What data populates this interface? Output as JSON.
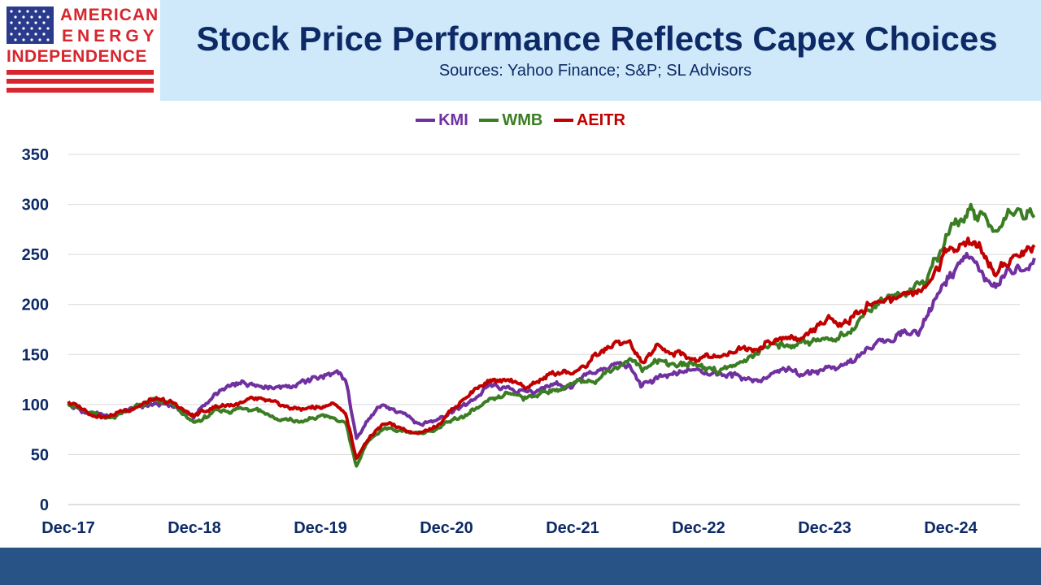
{
  "header": {
    "logo_line1": "AMERICAN",
    "logo_line2": "ENERGY",
    "logo_line3": "INDEPENDENCE",
    "title": "Stock Price Performance Reflects Capex Choices",
    "subtitle": "Sources: Yahoo Finance; S&P; SL Advisors"
  },
  "colors": {
    "header_bg": "#cfe9fb",
    "title": "#0d2a66",
    "footer": "#275387",
    "logo_red": "#d7262e",
    "logo_blue": "#2a3a8c"
  },
  "chart_data": {
    "type": "line",
    "title": "",
    "xlabel": "",
    "ylabel": "",
    "ylim": [
      0,
      350
    ],
    "yticks": [
      0,
      50,
      100,
      150,
      200,
      250,
      300,
      350
    ],
    "xticks": [
      "Dec-17",
      "Dec-18",
      "Dec-19",
      "Dec-20",
      "Dec-21",
      "Dec-22",
      "Dec-23",
      "Dec-24"
    ],
    "xlim": [
      "2017-12-01",
      "2025-07-31"
    ],
    "grid": true,
    "legend_position": "top",
    "series": [
      {
        "name": "KMI",
        "color": "#7030a0",
        "points": [
          [
            "2017-12-01",
            100
          ],
          [
            "2018-02-01",
            90
          ],
          [
            "2018-04-01",
            88
          ],
          [
            "2018-06-01",
            95
          ],
          [
            "2018-08-01",
            100
          ],
          [
            "2018-10-01",
            99
          ],
          [
            "2018-12-01",
            88
          ],
          [
            "2019-02-01",
            110
          ],
          [
            "2019-04-01",
            118
          ],
          [
            "2019-06-01",
            122
          ],
          [
            "2019-08-01",
            120
          ],
          [
            "2019-10-01",
            121
          ],
          [
            "2019-12-01",
            128
          ],
          [
            "2020-01-15",
            130
          ],
          [
            "2020-02-15",
            120
          ],
          [
            "2020-03-15",
            65
          ],
          [
            "2020-04-15",
            85
          ],
          [
            "2020-06-01",
            98
          ],
          [
            "2020-07-15",
            92
          ],
          [
            "2020-09-15",
            82
          ],
          [
            "2020-11-01",
            85
          ],
          [
            "2020-12-15",
            95
          ],
          [
            "2021-02-01",
            100
          ],
          [
            "2021-04-01",
            118
          ],
          [
            "2021-06-01",
            115
          ],
          [
            "2021-08-01",
            112
          ],
          [
            "2021-10-01",
            120
          ],
          [
            "2021-12-01",
            118
          ],
          [
            "2022-02-01",
            130
          ],
          [
            "2022-04-01",
            140
          ],
          [
            "2022-05-15",
            137
          ],
          [
            "2022-06-20",
            118
          ],
          [
            "2022-08-01",
            125
          ],
          [
            "2022-10-01",
            128
          ],
          [
            "2022-12-01",
            137
          ],
          [
            "2023-02-01",
            132
          ],
          [
            "2023-04-01",
            128
          ],
          [
            "2023-06-01",
            126
          ],
          [
            "2023-08-01",
            132
          ],
          [
            "2023-10-01",
            131
          ],
          [
            "2023-12-01",
            137
          ],
          [
            "2024-02-01",
            138
          ],
          [
            "2024-04-01",
            152
          ],
          [
            "2024-06-01",
            165
          ],
          [
            "2024-07-15",
            170
          ],
          [
            "2024-09-01",
            175
          ],
          [
            "2024-10-01",
            195
          ],
          [
            "2024-11-15",
            225
          ],
          [
            "2024-12-20",
            240
          ],
          [
            "2025-01-20",
            250
          ],
          [
            "2025-03-01",
            228
          ],
          [
            "2025-04-08",
            215
          ],
          [
            "2025-05-15",
            230
          ],
          [
            "2025-07-31",
            237
          ]
        ]
      },
      {
        "name": "WMB",
        "color": "#3b7d23",
        "points": [
          [
            "2017-12-01",
            103
          ],
          [
            "2018-02-01",
            90
          ],
          [
            "2018-04-01",
            87
          ],
          [
            "2018-06-01",
            95
          ],
          [
            "2018-08-01",
            103
          ],
          [
            "2018-10-01",
            98
          ],
          [
            "2018-12-01",
            80
          ],
          [
            "2019-02-01",
            92
          ],
          [
            "2019-04-01",
            95
          ],
          [
            "2019-06-01",
            98
          ],
          [
            "2019-08-01",
            85
          ],
          [
            "2019-10-01",
            82
          ],
          [
            "2019-12-01",
            87
          ],
          [
            "2020-01-15",
            87
          ],
          [
            "2020-02-15",
            80
          ],
          [
            "2020-03-15",
            38
          ],
          [
            "2020-04-15",
            62
          ],
          [
            "2020-06-01",
            75
          ],
          [
            "2020-07-15",
            73
          ],
          [
            "2020-09-15",
            72
          ],
          [
            "2020-11-01",
            76
          ],
          [
            "2020-12-15",
            82
          ],
          [
            "2021-02-01",
            90
          ],
          [
            "2021-04-01",
            100
          ],
          [
            "2021-06-01",
            110
          ],
          [
            "2021-08-01",
            108
          ],
          [
            "2021-10-01",
            115
          ],
          [
            "2021-12-01",
            118
          ],
          [
            "2022-02-01",
            125
          ],
          [
            "2022-04-01",
            138
          ],
          [
            "2022-05-15",
            145
          ],
          [
            "2022-06-20",
            135
          ],
          [
            "2022-08-01",
            145
          ],
          [
            "2022-10-01",
            140
          ],
          [
            "2022-12-01",
            140
          ],
          [
            "2023-02-01",
            135
          ],
          [
            "2023-04-01",
            140
          ],
          [
            "2023-06-01",
            155
          ],
          [
            "2023-08-01",
            160
          ],
          [
            "2023-10-01",
            165
          ],
          [
            "2023-12-01",
            165
          ],
          [
            "2024-02-01",
            170
          ],
          [
            "2024-04-01",
            195
          ],
          [
            "2024-06-01",
            205
          ],
          [
            "2024-07-15",
            212
          ],
          [
            "2024-09-01",
            215
          ],
          [
            "2024-10-01",
            230
          ],
          [
            "2024-11-15",
            260
          ],
          [
            "2024-12-20",
            283
          ],
          [
            "2025-01-20",
            290
          ],
          [
            "2025-03-01",
            285
          ],
          [
            "2025-04-08",
            270
          ],
          [
            "2025-05-15",
            295
          ],
          [
            "2025-07-31",
            295
          ]
        ]
      },
      {
        "name": "AEITR",
        "color": "#c00000",
        "points": [
          [
            "2017-12-01",
            103
          ],
          [
            "2018-02-01",
            92
          ],
          [
            "2018-04-01",
            89
          ],
          [
            "2018-06-01",
            97
          ],
          [
            "2018-08-01",
            104
          ],
          [
            "2018-10-01",
            100
          ],
          [
            "2018-12-01",
            88
          ],
          [
            "2019-02-01",
            98
          ],
          [
            "2019-04-01",
            101
          ],
          [
            "2019-06-01",
            103
          ],
          [
            "2019-08-01",
            98
          ],
          [
            "2019-10-01",
            95
          ],
          [
            "2019-12-01",
            98
          ],
          [
            "2020-01-15",
            100
          ],
          [
            "2020-02-15",
            90
          ],
          [
            "2020-03-15",
            45
          ],
          [
            "2020-04-15",
            65
          ],
          [
            "2020-06-01",
            80
          ],
          [
            "2020-07-15",
            78
          ],
          [
            "2020-09-15",
            72
          ],
          [
            "2020-11-01",
            80
          ],
          [
            "2020-12-15",
            95
          ],
          [
            "2021-02-01",
            110
          ],
          [
            "2021-04-01",
            125
          ],
          [
            "2021-06-01",
            120
          ],
          [
            "2021-08-01",
            118
          ],
          [
            "2021-10-01",
            130
          ],
          [
            "2021-12-01",
            132
          ],
          [
            "2022-02-01",
            145
          ],
          [
            "2022-04-01",
            160
          ],
          [
            "2022-05-15",
            160
          ],
          [
            "2022-06-20",
            140
          ],
          [
            "2022-08-01",
            155
          ],
          [
            "2022-10-01",
            150
          ],
          [
            "2022-12-01",
            145
          ],
          [
            "2023-02-01",
            150
          ],
          [
            "2023-04-01",
            158
          ],
          [
            "2023-06-01",
            160
          ],
          [
            "2023-08-01",
            165
          ],
          [
            "2023-10-01",
            168
          ],
          [
            "2023-12-01",
            180
          ],
          [
            "2024-02-01",
            185
          ],
          [
            "2024-04-01",
            200
          ],
          [
            "2024-06-01",
            205
          ],
          [
            "2024-07-15",
            210
          ],
          [
            "2024-09-01",
            215
          ],
          [
            "2024-10-01",
            225
          ],
          [
            "2024-11-15",
            250
          ],
          [
            "2024-12-20",
            262
          ],
          [
            "2025-01-20",
            265
          ],
          [
            "2025-03-01",
            255
          ],
          [
            "2025-04-08",
            228
          ],
          [
            "2025-05-15",
            248
          ],
          [
            "2025-07-31",
            262
          ]
        ]
      }
    ]
  }
}
